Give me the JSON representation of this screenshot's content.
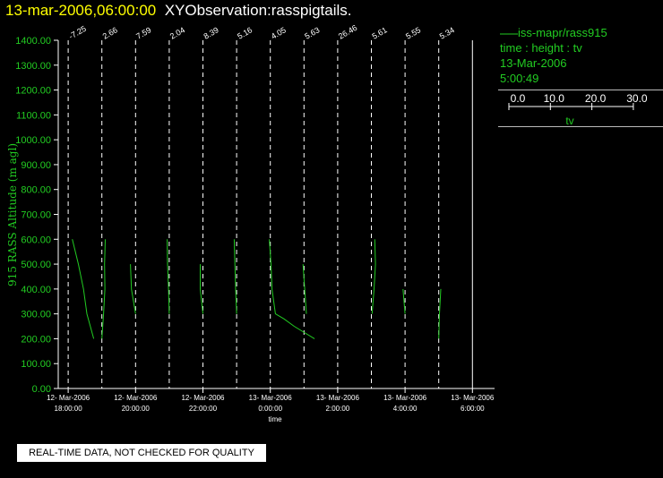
{
  "header": {
    "timestamp": "13-mar-2006,06:00:00",
    "title": "XYObservation:rasspigtails."
  },
  "legend": {
    "series_label": "iss-mapr/rass915",
    "axes_desc": "time : height : tv",
    "date": "13-Mar-2006",
    "time": "5:00:49",
    "scale_ticks": [
      "0.0",
      "10.0",
      "20.0",
      "30.0"
    ],
    "scale_label": "tv"
  },
  "footer": {
    "notice": "REAL-TIME DATA, NOT CHECKED FOR QUALITY"
  },
  "colors": {
    "accent": "#22cc22",
    "title_timestamp": "#ffff00",
    "title_text": "#ffffff",
    "axis_text": "#ffffff",
    "grid": "#ffffff",
    "background": "#000000"
  },
  "chart_data": {
    "type": "line",
    "title": "XYObservation:rasspigtails.",
    "xlabel": "time",
    "ylabel": "915 RASS Altitude (m agl)",
    "ylim": [
      0,
      1400
    ],
    "yticks": [
      "0.00",
      "100.00",
      "200.00",
      "300.00",
      "400.00",
      "500.00",
      "600.00",
      "700.00",
      "800.00",
      "900.00",
      "1000.00",
      "1100.00",
      "1200.00",
      "1300.00",
      "1400.00"
    ],
    "xlim_hours": [
      17.0,
      30.0
    ],
    "xticks": [
      {
        "hour": 18,
        "date": "12- Mar-2006",
        "time": "18:00:00"
      },
      {
        "hour": 20,
        "date": "12- Mar-2006",
        "time": "20:00:00"
      },
      {
        "hour": 22,
        "date": "12- Mar-2006",
        "time": "22:00:00"
      },
      {
        "hour": 24,
        "date": "13- Mar-2006",
        "time": "0:00:00"
      },
      {
        "hour": 26,
        "date": "13- Mar-2006",
        "time": "2:00:00"
      },
      {
        "hour": 28,
        "date": "13- Mar-2006",
        "time": "4:00:00"
      },
      {
        "hour": 30,
        "date": "13- Mar-2006",
        "time": "6:00:00"
      }
    ],
    "profiles": [
      {
        "hour": 18.0,
        "label": "-7.25",
        "points": [
          [
            1.2,
            600
          ],
          [
            3.0,
            500
          ],
          [
            4.5,
            400
          ],
          [
            5.5,
            300
          ],
          [
            6.5,
            250
          ],
          [
            7.5,
            200
          ]
        ]
      },
      {
        "hour": 19.0,
        "label": "2.66",
        "points": [
          [
            1.0,
            600
          ],
          [
            0.8,
            500
          ],
          [
            0.9,
            400
          ],
          [
            0.5,
            300
          ],
          [
            0.0,
            200
          ]
        ]
      },
      {
        "hour": 20.0,
        "label": "7.59",
        "points": [
          [
            -1.5,
            500
          ],
          [
            -1.2,
            400
          ],
          [
            0.0,
            300
          ]
        ]
      },
      {
        "hour": 21.0,
        "label": "2.04",
        "points": [
          [
            -0.6,
            600
          ],
          [
            -0.5,
            500
          ],
          [
            -0.2,
            400
          ],
          [
            0.0,
            300
          ]
        ]
      },
      {
        "hour": 22.0,
        "label": "8.39",
        "points": [
          [
            -0.8,
            500
          ],
          [
            -0.8,
            400
          ],
          [
            0.0,
            300
          ]
        ]
      },
      {
        "hour": 23.0,
        "label": "5.16",
        "points": [
          [
            -0.7,
            600
          ],
          [
            -0.5,
            500
          ],
          [
            -0.3,
            400
          ],
          [
            0.0,
            300
          ]
        ]
      },
      {
        "hour": 24.0,
        "label": "4.05",
        "points": [
          [
            -0.3,
            600
          ],
          [
            0.2,
            500
          ],
          [
            0.5,
            400
          ],
          [
            1.5,
            300
          ],
          [
            4.0,
            280
          ],
          [
            7.0,
            250
          ],
          [
            10.0,
            225
          ],
          [
            13.0,
            200
          ]
        ]
      },
      {
        "hour": 25.0,
        "label": "5.63",
        "points": [
          [
            -0.3,
            500
          ],
          [
            0.2,
            400
          ],
          [
            0.7,
            300
          ]
        ]
      },
      {
        "hour": 26.0,
        "label": "26.46",
        "points": []
      },
      {
        "hour": 27.0,
        "label": "5.61",
        "points": [
          [
            1.0,
            600
          ],
          [
            1.2,
            500
          ],
          [
            0.8,
            400
          ],
          [
            0.2,
            300
          ]
        ]
      },
      {
        "hour": 28.0,
        "label": "5.55",
        "points": [
          [
            -0.6,
            400
          ],
          [
            0.0,
            300
          ]
        ]
      },
      {
        "hour": 29.0,
        "label": "5.34",
        "points": [
          [
            0.6,
            400
          ],
          [
            0.2,
            300
          ],
          [
            0.0,
            200
          ]
        ]
      }
    ]
  }
}
